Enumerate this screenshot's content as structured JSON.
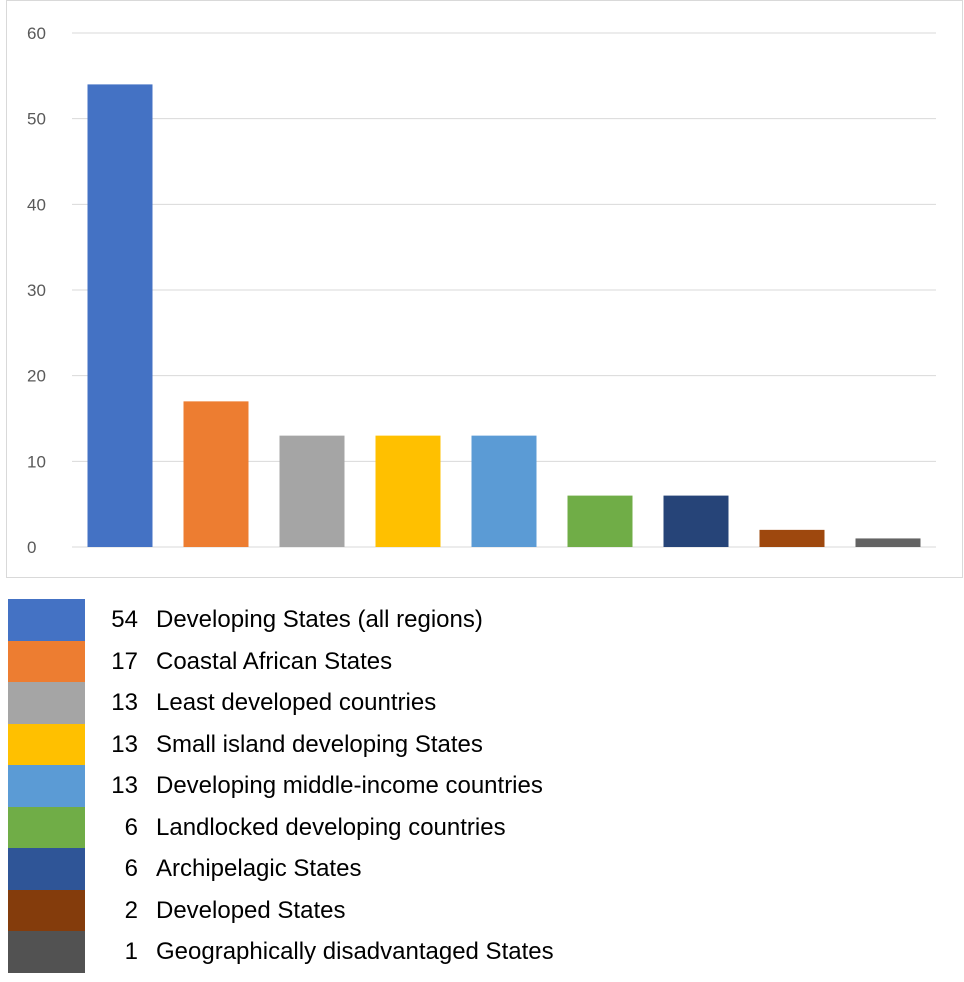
{
  "chart_data": {
    "type": "bar",
    "categories": [
      "Developing States (all regions)",
      "Coastal African States",
      "Least developed countries",
      "Small island developing States",
      "Developing middle-income countries",
      "Landlocked developing countries",
      "Archipelagic States",
      "Developed States",
      "Geographically disadvantaged States"
    ],
    "values": [
      54,
      17,
      13,
      13,
      13,
      6,
      6,
      2,
      1
    ],
    "colors": [
      "#4472c4",
      "#ed7d31",
      "#a5a5a5",
      "#ffc000",
      "#5b9bd5",
      "#70ad47",
      "#264478",
      "#9e480e",
      "#636363"
    ],
    "ylim": [
      0,
      60
    ],
    "yticks": [
      "0",
      "10",
      "20",
      "30",
      "40",
      "50",
      "60"
    ],
    "grid": true,
    "legend_placement": "below"
  },
  "legend": {
    "items": [
      {
        "value": "54",
        "label": "Developing States (all regions)",
        "color": "#4472c4"
      },
      {
        "value": "17",
        "label": "Coastal African States",
        "color": "#ed7d31"
      },
      {
        "value": "13",
        "label": "Least developed countries",
        "color": "#a5a5a5"
      },
      {
        "value": "13",
        "label": "Small island developing States",
        "color": "#ffc000"
      },
      {
        "value": "13",
        "label": "Developing middle-income countries",
        "color": "#5b9bd5"
      },
      {
        "value": "6",
        "label": "Landlocked developing countries",
        "color": "#70ad47"
      },
      {
        "value": "6",
        "label": "Archipelagic States",
        "color": "#2f5597"
      },
      {
        "value": "2",
        "label": "Developed States",
        "color": "#843c0c"
      },
      {
        "value": "1",
        "label": "Geographically disadvantaged States",
        "color": "#525252"
      }
    ]
  }
}
